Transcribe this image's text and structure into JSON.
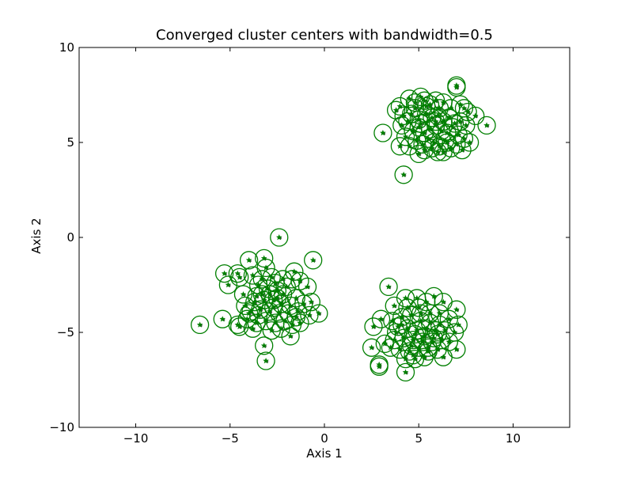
{
  "chart_data": {
    "type": "scatter",
    "title": "Converged cluster centers with bandwidth=0.5",
    "xlabel": "Axis 1",
    "ylabel": "Axis 2",
    "xlim": [
      -13,
      13
    ],
    "ylim": [
      -10,
      10
    ],
    "xticks": [
      -10,
      -5,
      0,
      5,
      10
    ],
    "xtick_labels": [
      "−10",
      "−5",
      "0",
      "5",
      "10"
    ],
    "yticks": [
      -10,
      -5,
      0,
      5,
      10
    ],
    "ytick_labels": [
      "−10",
      "−5",
      "0",
      "5",
      "10"
    ],
    "grid": false,
    "legend": "none",
    "marker_style": "green star inside hollow green circle",
    "colors": {
      "marker": "#007f00",
      "data_dot": "#555555",
      "axes": "#000000"
    },
    "series": [
      {
        "points": [
          [
            3.1,
            5.5
          ],
          [
            4.2,
            3.3
          ],
          [
            4.0,
            6.9
          ],
          [
            3.8,
            6.7
          ],
          [
            4.5,
            7.3
          ],
          [
            4.2,
            6.4
          ],
          [
            4.1,
            5.9
          ],
          [
            4.4,
            6.1
          ],
          [
            4.8,
            6.8
          ],
          [
            5.1,
            7.4
          ],
          [
            5.3,
            7.2
          ],
          [
            5.6,
            7.0
          ],
          [
            5.9,
            7.2
          ],
          [
            6.3,
            7.1
          ],
          [
            6.7,
            6.8
          ],
          [
            7.0,
            8.0
          ],
          [
            7.0,
            7.9
          ],
          [
            7.2,
            7.0
          ],
          [
            7.4,
            6.8
          ],
          [
            7.6,
            6.6
          ],
          [
            8.0,
            6.4
          ],
          [
            8.6,
            5.9
          ],
          [
            4.6,
            6.5
          ],
          [
            5.0,
            6.2
          ],
          [
            5.4,
            6.5
          ],
          [
            5.7,
            6.3
          ],
          [
            6.0,
            6.4
          ],
          [
            6.3,
            6.1
          ],
          [
            6.6,
            6.3
          ],
          [
            6.9,
            6.0
          ],
          [
            7.2,
            6.1
          ],
          [
            7.5,
            5.9
          ],
          [
            4.7,
            5.6
          ],
          [
            5.0,
            5.8
          ],
          [
            5.3,
            5.5
          ],
          [
            5.6,
            5.7
          ],
          [
            5.9,
            5.9
          ],
          [
            6.2,
            5.6
          ],
          [
            6.5,
            5.5
          ],
          [
            6.8,
            5.8
          ],
          [
            7.1,
            5.4
          ],
          [
            7.4,
            5.2
          ],
          [
            7.7,
            5.0
          ],
          [
            4.3,
            5.3
          ],
          [
            4.5,
            4.8
          ],
          [
            4.9,
            5.1
          ],
          [
            5.2,
            4.9
          ],
          [
            5.5,
            5.2
          ],
          [
            5.8,
            5.0
          ],
          [
            6.1,
            4.8
          ],
          [
            6.4,
            5.1
          ],
          [
            6.7,
            4.7
          ],
          [
            7.0,
            4.9
          ],
          [
            7.3,
            4.6
          ],
          [
            5.0,
            4.4
          ],
          [
            5.3,
            4.6
          ],
          [
            5.7,
            4.7
          ],
          [
            6.0,
            4.5
          ],
          [
            6.3,
            4.5
          ],
          [
            4.0,
            4.8
          ],
          [
            5.4,
            6.9
          ],
          [
            6.1,
            6.8
          ],
          [
            4.8,
            7.1
          ],
          [
            5.9,
            6.1
          ],
          [
            5.1,
            6.0
          ],
          [
            6.5,
            5.0
          ]
        ]
      },
      {
        "points": [
          [
            -2.4,
            0.0
          ],
          [
            -0.6,
            -1.2
          ],
          [
            -4.0,
            -1.2
          ],
          [
            -3.2,
            -1.1
          ],
          [
            -4.6,
            -1.9
          ],
          [
            -5.3,
            -1.9
          ],
          [
            -5.1,
            -2.5
          ],
          [
            -4.5,
            -2.1
          ],
          [
            -3.8,
            -2.0
          ],
          [
            -3.1,
            -1.6
          ],
          [
            -2.8,
            -2.1
          ],
          [
            -2.2,
            -2.2
          ],
          [
            -1.6,
            -1.8
          ],
          [
            -1.7,
            -2.2
          ],
          [
            -3.5,
            -2.5
          ],
          [
            -3.0,
            -2.7
          ],
          [
            -2.5,
            -2.8
          ],
          [
            -2.0,
            -2.6
          ],
          [
            -1.3,
            -2.3
          ],
          [
            -0.9,
            -2.6
          ],
          [
            -4.3,
            -3.0
          ],
          [
            -3.6,
            -3.1
          ],
          [
            -3.2,
            -3.3
          ],
          [
            -2.7,
            -3.3
          ],
          [
            -2.3,
            -3.5
          ],
          [
            -1.8,
            -3.6
          ],
          [
            -1.5,
            -3.2
          ],
          [
            -1.1,
            -3.5
          ],
          [
            -0.7,
            -3.4
          ],
          [
            -4.2,
            -3.6
          ],
          [
            -3.9,
            -3.9
          ],
          [
            -3.4,
            -3.8
          ],
          [
            -2.9,
            -3.9
          ],
          [
            -2.4,
            -4.0
          ],
          [
            -1.9,
            -4.0
          ],
          [
            -1.4,
            -3.9
          ],
          [
            -0.3,
            -4.0
          ],
          [
            -0.8,
            -4.1
          ],
          [
            -4.1,
            -4.3
          ],
          [
            -3.6,
            -4.5
          ],
          [
            -3.1,
            -4.4
          ],
          [
            -2.6,
            -4.5
          ],
          [
            -2.1,
            -4.4
          ],
          [
            -1.7,
            -4.6
          ],
          [
            -1.3,
            -4.5
          ],
          [
            -4.6,
            -4.6
          ],
          [
            -3.8,
            -4.8
          ],
          [
            -2.8,
            -4.9
          ],
          [
            -2.3,
            -4.8
          ],
          [
            -1.8,
            -5.2
          ],
          [
            -5.4,
            -4.3
          ],
          [
            -6.6,
            -4.6
          ],
          [
            -3.2,
            -5.7
          ],
          [
            -3.1,
            -6.5
          ],
          [
            -4.5,
            -4.7
          ],
          [
            -2.6,
            -2.4
          ],
          [
            -3.3,
            -2.2
          ],
          [
            -2.9,
            -3.0
          ],
          [
            -3.7,
            -3.4
          ],
          [
            -2.2,
            -3.0
          ],
          [
            -1.5,
            -4.2
          ],
          [
            -3.5,
            -4.1
          ],
          [
            -2.7,
            -3.7
          ],
          [
            -4.0,
            -4.0
          ],
          [
            -3.3,
            -3.0
          ],
          [
            -2.5,
            -3.2
          ]
        ]
      },
      {
        "points": [
          [
            3.4,
            -2.6
          ],
          [
            3.7,
            -3.6
          ],
          [
            4.3,
            -3.2
          ],
          [
            4.9,
            -3.2
          ],
          [
            5.4,
            -3.4
          ],
          [
            5.8,
            -3.1
          ],
          [
            6.3,
            -3.4
          ],
          [
            7.0,
            -3.8
          ],
          [
            3.0,
            -4.3
          ],
          [
            3.6,
            -4.4
          ],
          [
            4.1,
            -4.2
          ],
          [
            4.6,
            -4.1
          ],
          [
            5.1,
            -4.0
          ],
          [
            5.6,
            -4.0
          ],
          [
            6.1,
            -4.0
          ],
          [
            6.6,
            -4.3
          ],
          [
            7.1,
            -4.6
          ],
          [
            3.9,
            -4.7
          ],
          [
            4.4,
            -4.8
          ],
          [
            4.9,
            -4.9
          ],
          [
            5.4,
            -4.8
          ],
          [
            5.9,
            -4.9
          ],
          [
            6.4,
            -4.9
          ],
          [
            6.9,
            -5.0
          ],
          [
            2.6,
            -4.7
          ],
          [
            2.5,
            -5.8
          ],
          [
            3.2,
            -5.6
          ],
          [
            3.7,
            -5.4
          ],
          [
            4.2,
            -5.3
          ],
          [
            4.7,
            -5.4
          ],
          [
            5.2,
            -5.5
          ],
          [
            5.7,
            -5.5
          ],
          [
            6.2,
            -5.4
          ],
          [
            6.6,
            -5.5
          ],
          [
            7.0,
            -5.9
          ],
          [
            3.5,
            -5.8
          ],
          [
            4.0,
            -5.9
          ],
          [
            4.5,
            -6.0
          ],
          [
            5.0,
            -5.8
          ],
          [
            5.5,
            -6.0
          ],
          [
            6.0,
            -5.9
          ],
          [
            6.3,
            -6.3
          ],
          [
            4.3,
            -6.4
          ],
          [
            4.8,
            -6.4
          ],
          [
            5.3,
            -6.3
          ],
          [
            2.9,
            -6.7
          ],
          [
            2.9,
            -6.8
          ],
          [
            4.3,
            -7.1
          ],
          [
            4.8,
            -5.1
          ],
          [
            5.3,
            -5.2
          ],
          [
            5.8,
            -5.3
          ],
          [
            4.1,
            -4.6
          ],
          [
            4.6,
            -5.7
          ],
          [
            5.1,
            -4.4
          ],
          [
            5.6,
            -4.5
          ],
          [
            6.1,
            -4.6
          ],
          [
            3.8,
            -5.0
          ],
          [
            4.4,
            -3.7
          ],
          [
            5.0,
            -3.7
          ],
          [
            5.5,
            -5.8
          ],
          [
            6.0,
            -5.1
          ],
          [
            4.7,
            -6.2
          ]
        ]
      }
    ]
  }
}
